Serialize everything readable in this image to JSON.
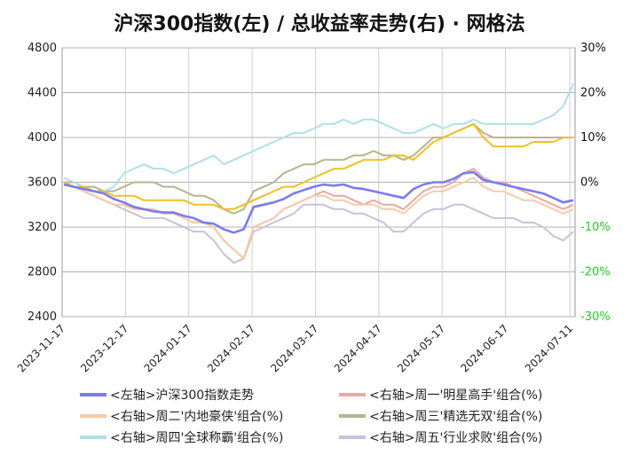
{
  "chart_data": {
    "type": "line",
    "title": "沪深300指数(左) / 总收益率走势(右) · 网格法",
    "x_ticks": [
      "2023-11-17",
      "2023-12-17",
      "2024-01-17",
      "2024-02-17",
      "2024-03-17",
      "2024-04-17",
      "2024-05-17",
      "2024-06-17",
      "2024-07-11"
    ],
    "x_tick_highlight": "2024-07-11",
    "left_axis": {
      "ticks": [
        "2400",
        "2800",
        "3200",
        "3600",
        "4000",
        "4400",
        "4800"
      ],
      "range": [
        2400,
        4800
      ]
    },
    "right_axis": {
      "ticks": [
        "-30%",
        "-20%",
        "-10%",
        "0%",
        "10%",
        "20%",
        "30%"
      ],
      "range": [
        -30,
        30
      ],
      "negative_color": "#22cc22",
      "positive_color": "#111111"
    },
    "grid": true,
    "legend_position": "bottom",
    "series": [
      {
        "name": "<左轴>沪深300指数走势",
        "axis": "left",
        "color": "#7b7bef",
        "values": [
          3580,
          3560,
          3540,
          3520,
          3500,
          3450,
          3420,
          3380,
          3360,
          3340,
          3330,
          3330,
          3300,
          3280,
          3240,
          3230,
          3180,
          3150,
          3180,
          3380,
          3400,
          3420,
          3450,
          3500,
          3530,
          3560,
          3580,
          3570,
          3580,
          3550,
          3540,
          3520,
          3500,
          3480,
          3460,
          3540,
          3580,
          3600,
          3600,
          3630,
          3680,
          3690,
          3620,
          3600,
          3580,
          3560,
          3540,
          3520,
          3500,
          3460,
          3420,
          3440
        ]
      },
      {
        "name": "<右轴>周一'明星高手'组合(%)",
        "axis": "right",
        "color": "#e8a9a0",
        "values": [
          0,
          -1,
          -2,
          -3,
          -4,
          -5,
          -5,
          -6,
          -6,
          -6,
          -7,
          -7,
          -8,
          -9,
          -9,
          -10,
          -13,
          -15,
          -17,
          -10,
          -9,
          -8,
          -6,
          -5,
          -4,
          -3,
          -2,
          -3,
          -3,
          -4,
          -5,
          -4,
          -5,
          -5,
          -6,
          -4,
          -2,
          -1,
          -1,
          0,
          2,
          3,
          1,
          0,
          0,
          -1,
          -2,
          -3,
          -4,
          -5,
          -6,
          -5
        ]
      },
      {
        "name": "<右轴>周二'内地豪侠'组合(%)",
        "axis": "right",
        "color": "#f6cba8",
        "values": [
          0,
          -1,
          -2,
          -3,
          -4,
          -5,
          -5,
          -6,
          -6,
          -6,
          -7,
          -7,
          -8,
          -9,
          -9,
          -10,
          -13,
          -15,
          -17,
          -10,
          -9,
          -8,
          -6,
          -5,
          -4,
          -3,
          -3,
          -4,
          -4,
          -5,
          -5,
          -5,
          -6,
          -6,
          -7,
          -5,
          -3,
          -2,
          -2,
          -1,
          0,
          1,
          -1,
          -2,
          -2,
          -3,
          -4,
          -4,
          -5,
          -6,
          -7,
          -6
        ]
      },
      {
        "name": "<右轴>周三'精选无双'组合(%)",
        "axis": "right",
        "color": "#b7b48f",
        "values": [
          0,
          0,
          -1,
          -1,
          -2,
          -2,
          -1,
          0,
          0,
          0,
          -1,
          -1,
          -2,
          -3,
          -3,
          -4,
          -6,
          -7,
          -6,
          -2,
          -1,
          0,
          2,
          3,
          4,
          4,
          5,
          5,
          5,
          6,
          6,
          7,
          6,
          6,
          5,
          6,
          8,
          10,
          10,
          11,
          12,
          13,
          11,
          10,
          10,
          10,
          10,
          10,
          10,
          10,
          10,
          10
        ]
      },
      {
        "name": "<右轴>周四'全球称霸'组合(%)",
        "axis": "right",
        "color": "#aee0e6",
        "values": [
          1,
          0,
          -1,
          -2,
          -2,
          -1,
          2,
          3,
          4,
          3,
          3,
          2,
          3,
          4,
          5,
          6,
          4,
          5,
          6,
          7,
          8,
          9,
          10,
          11,
          11,
          12,
          13,
          13,
          14,
          13,
          14,
          14,
          13,
          12,
          11,
          11,
          12,
          13,
          12,
          13,
          13,
          14,
          13,
          13,
          13,
          13,
          13,
          13,
          14,
          15,
          17,
          22
        ]
      },
      {
        "name": "<右轴>周五'行业求败'组合(%)",
        "axis": "right",
        "color": "#c7c2db",
        "values": [
          0,
          -1,
          -2,
          -3,
          -4,
          -5,
          -6,
          -7,
          -8,
          -8,
          -8,
          -9,
          -10,
          -11,
          -11,
          -13,
          -16,
          -18,
          -17,
          -11,
          -10,
          -9,
          -8,
          -7,
          -5,
          -5,
          -5,
          -6,
          -6,
          -7,
          -7,
          -8,
          -9,
          -11,
          -11,
          -9,
          -7,
          -6,
          -6,
          -5,
          -5,
          -6,
          -7,
          -8,
          -8,
          -8,
          -9,
          -9,
          -10,
          -12,
          -13,
          -11
        ]
      },
      {
        "name": "_gold",
        "axis": "right",
        "color": "#f0c020",
        "values": [
          0,
          -1,
          -1,
          -2,
          -2,
          -3,
          -3,
          -3,
          -4,
          -4,
          -4,
          -4,
          -4,
          -5,
          -5,
          -5,
          -6,
          -6,
          -5,
          -4,
          -3,
          -2,
          -1,
          -1,
          0,
          1,
          2,
          3,
          3,
          4,
          5,
          5,
          5,
          6,
          6,
          5,
          7,
          9,
          10,
          11,
          12,
          13,
          10,
          8,
          8,
          8,
          8,
          9,
          9,
          9,
          10,
          10
        ]
      }
    ],
    "legend": [
      "<左轴>沪深300指数走势",
      "<右轴>周一'明星高手'组合(%)",
      "<右轴>周二'内地豪侠'组合(%)",
      "<右轴>周三'精选无双'组合(%)",
      "<右轴>周四'全球称霸'组合(%)",
      "<右轴>周五'行业求败'组合(%)"
    ]
  }
}
